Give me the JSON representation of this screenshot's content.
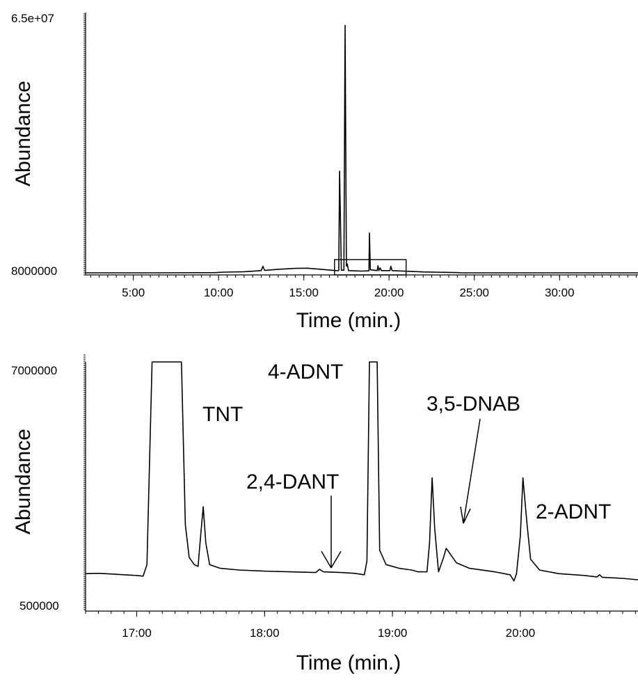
{
  "chart_data": [
    {
      "type": "line",
      "x_unit": "min",
      "xlabel": "Time (min.)",
      "ylabel": "Abundance",
      "ytick_labels": [
        "6.5e+07",
        "8000000"
      ],
      "xtick_labels": [
        "5:00",
        "10:00",
        "15:00",
        "20:00",
        "25:00",
        "30:00"
      ],
      "xticks": [
        5,
        10,
        15,
        20,
        25,
        30
      ],
      "xlim": [
        2.2,
        34.6
      ],
      "ylim": [
        8000000,
        65000000
      ],
      "zoom_box": {
        "x": [
          16.8,
          21.0
        ],
        "y": [
          8000000,
          11000000
        ]
      },
      "series": [
        {
          "values_xy": [
            [
              2.2,
              8000000
            ],
            [
              6.0,
              8000000
            ],
            [
              9.8,
              8050000
            ],
            [
              10.3,
              8150000
            ],
            [
              11.5,
              8250000
            ],
            [
              12.5,
              8500000
            ],
            [
              12.6,
              9500000
            ],
            [
              12.7,
              8550000
            ],
            [
              13.5,
              8800000
            ],
            [
              14.5,
              9000000
            ],
            [
              15.2,
              9050000
            ],
            [
              16.0,
              8800000
            ],
            [
              16.9,
              8500000
            ],
            [
              17.05,
              8500000
            ],
            [
              17.1,
              31000000
            ],
            [
              17.2,
              8600000
            ],
            [
              17.35,
              8600000
            ],
            [
              17.42,
              64000000
            ],
            [
              17.5,
              9500000
            ],
            [
              17.55,
              10000000
            ],
            [
              17.62,
              8500000
            ],
            [
              18.4,
              8400000
            ],
            [
              18.82,
              8450000
            ],
            [
              18.85,
              17000000
            ],
            [
              18.9,
              8700000
            ],
            [
              19.3,
              8500000
            ],
            [
              19.35,
              9600000
            ],
            [
              19.4,
              8500000
            ],
            [
              19.48,
              9100000
            ],
            [
              19.55,
              8500000
            ],
            [
              20.05,
              8500000
            ],
            [
              20.1,
              9500000
            ],
            [
              20.18,
              8500000
            ],
            [
              22.0,
              8200000
            ],
            [
              24.1,
              8050000
            ],
            [
              24.2,
              8000000
            ],
            [
              34.6,
              8000000
            ]
          ]
        }
      ]
    },
    {
      "type": "line",
      "x_unit": "min",
      "xlabel": "Time (min.)",
      "ylabel": "Abundance",
      "ytick_labels": [
        "7000000",
        "500000"
      ],
      "xtick_labels": [
        "17:00",
        "18:00",
        "19:00",
        "20:00"
      ],
      "xticks": [
        17,
        18,
        19,
        20
      ],
      "xlim": [
        16.6,
        20.92
      ],
      "ylim": [
        500000,
        7000000
      ],
      "annotations": [
        {
          "text": "TNT",
          "x": 17.4
        },
        {
          "text": "4-ADNT",
          "x": 18.84
        },
        {
          "text": "2,4-DANT",
          "x": 18.45
        },
        {
          "text": "3,5-DNAB",
          "x": 19.5
        },
        {
          "text": "2-ADNT",
          "x": 20.05
        }
      ],
      "series": [
        {
          "values_xy": [
            [
              16.6,
              1150000
            ],
            [
              16.7,
              1160000
            ],
            [
              16.8,
              1140000
            ],
            [
              16.9,
              1120000
            ],
            [
              17.0,
              1100000
            ],
            [
              17.05,
              1080000
            ],
            [
              17.08,
              1400000
            ],
            [
              17.12,
              7000000
            ],
            [
              17.35,
              7000000
            ],
            [
              17.38,
              2500000
            ],
            [
              17.41,
              1600000
            ],
            [
              17.45,
              1400000
            ],
            [
              17.48,
              1350000
            ],
            [
              17.5,
              2200000
            ],
            [
              17.52,
              3000000
            ],
            [
              17.54,
              2000000
            ],
            [
              17.57,
              1400000
            ],
            [
              17.65,
              1300000
            ],
            [
              17.8,
              1250000
            ],
            [
              18.0,
              1220000
            ],
            [
              18.2,
              1200000
            ],
            [
              18.4,
              1180000
            ],
            [
              18.43,
              1270000
            ],
            [
              18.46,
              1200000
            ],
            [
              18.6,
              1180000
            ],
            [
              18.7,
              1160000
            ],
            [
              18.78,
              1120000
            ],
            [
              18.8,
              1500000
            ],
            [
              18.82,
              7000000
            ],
            [
              18.88,
              7000000
            ],
            [
              18.9,
              1800000
            ],
            [
              18.95,
              1400000
            ],
            [
              19.05,
              1300000
            ],
            [
              19.15,
              1250000
            ],
            [
              19.2,
              1200000
            ],
            [
              19.27,
              1200000
            ],
            [
              19.29,
              2000000
            ],
            [
              19.31,
              3800000
            ],
            [
              19.33,
              2400000
            ],
            [
              19.36,
              1200000
            ],
            [
              19.4,
              1600000
            ],
            [
              19.42,
              1850000
            ],
            [
              19.45,
              1700000
            ],
            [
              19.5,
              1450000
            ],
            [
              19.6,
              1300000
            ],
            [
              19.8,
              1200000
            ],
            [
              19.92,
              1120000
            ],
            [
              19.95,
              950000
            ],
            [
              19.97,
              1150000
            ],
            [
              20.0,
              2200000
            ],
            [
              20.02,
              3800000
            ],
            [
              20.05,
              2600000
            ],
            [
              20.08,
              1550000
            ],
            [
              20.15,
              1250000
            ],
            [
              20.3,
              1150000
            ],
            [
              20.5,
              1100000
            ],
            [
              20.6,
              1060000
            ],
            [
              20.62,
              1120000
            ],
            [
              20.64,
              1050000
            ],
            [
              20.8,
              1020000
            ],
            [
              20.92,
              980000
            ]
          ]
        }
      ]
    }
  ]
}
